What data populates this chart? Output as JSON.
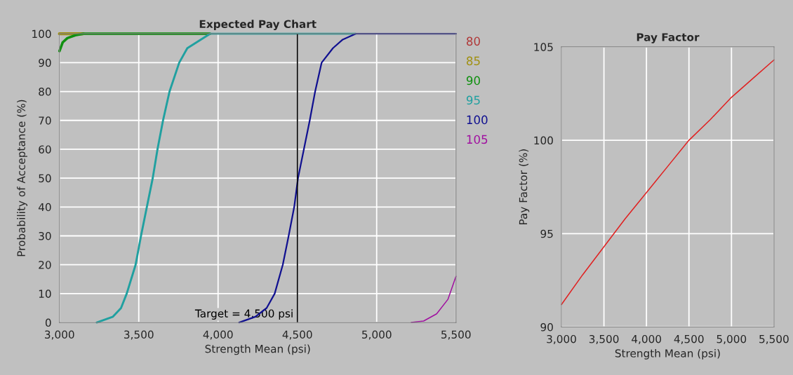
{
  "chart_data": [
    {
      "type": "line",
      "title": "Expected Pay Chart",
      "xlabel": "Strength Mean (psi)",
      "ylabel": "Probability of Acceptance (%)",
      "xlim": [
        3000,
        5500
      ],
      "ylim": [
        0,
        100
      ],
      "xticks": [
        {
          "value": 3000,
          "label": "3,000"
        },
        {
          "value": 3500,
          "label": "3,500"
        },
        {
          "value": 4000,
          "label": "4,000"
        },
        {
          "value": 4500,
          "label": "4,500"
        },
        {
          "value": 5000,
          "label": "5,000"
        },
        {
          "value": 5500,
          "label": "5,500"
        }
      ],
      "yticks": [
        0,
        10,
        20,
        30,
        40,
        50,
        60,
        70,
        80,
        90,
        100
      ],
      "grid": true,
      "legend": "right",
      "ref_lines": [
        {
          "axis": "x",
          "value": 4500,
          "label": "Target = 4,500 psi",
          "color": "#000000"
        }
      ],
      "series": [
        {
          "name": "80",
          "color": "#b03838"
        },
        {
          "name": "85",
          "color": "#a09010",
          "x": [
            3000,
            3150
          ],
          "values": [
            100,
            100
          ]
        },
        {
          "name": "90",
          "color": "#109010",
          "x": [
            3000,
            3020,
            3050,
            3100,
            3150,
            3949
          ],
          "values": [
            94,
            97,
            98.5,
            99.5,
            100,
            100
          ]
        },
        {
          "name": "95",
          "color": "#20a0a0",
          "x": [
            3235,
            3337,
            3388,
            3424,
            3480,
            3514,
            3551,
            3588,
            3618,
            3653,
            3694,
            3755,
            3806,
            3949,
            4867
          ],
          "values": [
            0,
            2,
            5,
            10,
            20,
            30,
            40,
            50,
            60,
            70,
            80,
            90,
            95,
            100,
            100
          ]
        },
        {
          "name": "100",
          "color": "#101090",
          "x": [
            4133,
            4235,
            4306,
            4357,
            4408,
            4445,
            4480,
            4504,
            4541,
            4578,
            4612,
            4653,
            4724,
            4786,
            4867,
            5500
          ],
          "values": [
            0,
            2,
            5,
            10,
            20,
            30,
            40,
            50,
            60,
            70,
            80,
            90,
            95,
            98,
            100,
            100
          ]
        },
        {
          "name": "105",
          "color": "#a010a0",
          "x": [
            5218,
            5296,
            5378,
            5449,
            5500
          ],
          "values": [
            0,
            0.5,
            3,
            8,
            16
          ]
        }
      ]
    },
    {
      "type": "line",
      "title": "Pay Factor",
      "xlabel": "Strength Mean (psi)",
      "ylabel": "Pay Factor (%)",
      "xlim": [
        3000,
        5500
      ],
      "ylim": [
        90,
        105
      ],
      "xticks": [
        {
          "value": 3000,
          "label": "3,000"
        },
        {
          "value": 3500,
          "label": "3,500"
        },
        {
          "value": 4000,
          "label": "4,000"
        },
        {
          "value": 4500,
          "label": "4,500"
        },
        {
          "value": 5000,
          "label": "5,000"
        },
        {
          "value": 5500,
          "label": "5,500"
        }
      ],
      "yticks": [
        90,
        95,
        100,
        105
      ],
      "grid": true,
      "series": [
        {
          "color": "#e02020",
          "x": [
            3000,
            3250,
            3500,
            3750,
            4000,
            4250,
            4500,
            4750,
            5000,
            5250,
            5500
          ],
          "values": [
            91.2,
            92.8,
            94.3,
            95.8,
            97.2,
            98.6,
            100,
            101.1,
            102.3,
            103.3,
            104.3
          ]
        }
      ]
    }
  ]
}
